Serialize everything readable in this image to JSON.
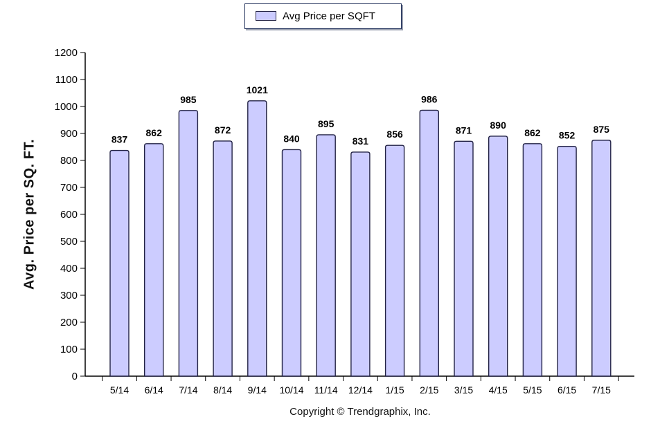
{
  "legend": {
    "label": "Avg Price per SQFT",
    "swatch_color": "#ccccff"
  },
  "chart_data": {
    "type": "bar",
    "categories": [
      "5/14",
      "6/14",
      "7/14",
      "8/14",
      "9/14",
      "10/14",
      "11/14",
      "12/14",
      "1/15",
      "2/15",
      "3/15",
      "4/15",
      "5/15",
      "6/15",
      "7/15"
    ],
    "series": [
      {
        "name": "Avg Price per SQFT",
        "values": [
          837,
          862,
          985,
          872,
          1021,
          840,
          895,
          831,
          856,
          986,
          871,
          890,
          862,
          852,
          875
        ]
      }
    ],
    "ylabel": "Avg. Price per SQ. FT.",
    "ylim": [
      0,
      1200
    ],
    "yticks": [
      0,
      100,
      200,
      300,
      400,
      500,
      600,
      700,
      800,
      900,
      1000,
      1100,
      1200
    ],
    "grid": false,
    "legend_position": "top-center",
    "bar_color": "#ccccff",
    "bar_edge_color": "#222244"
  },
  "footer": {
    "copyright": "Copyright © Trendgraphix, Inc."
  }
}
